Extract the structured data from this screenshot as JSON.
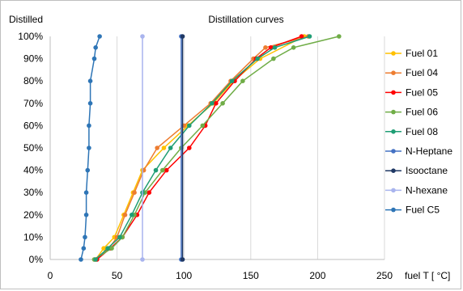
{
  "chart_data": {
    "type": "line",
    "title": "Distillation curves",
    "ylabel": "Distilled",
    "xlabel": "fuel T [ °C]",
    "xlim": [
      0,
      250
    ],
    "ylim": [
      0,
      100
    ],
    "x_ticks": [
      0,
      50,
      100,
      150,
      200,
      250
    ],
    "y_ticks": [
      0,
      10,
      20,
      30,
      40,
      50,
      60,
      70,
      80,
      90,
      100
    ],
    "y_tick_suffix": "%",
    "grid": "vertical",
    "legend_position": "right",
    "series": [
      {
        "name": "Fuel 01",
        "color": "#ffc000",
        "points": [
          [
            34,
            0
          ],
          [
            40,
            5
          ],
          [
            48,
            10
          ],
          [
            55,
            20
          ],
          [
            62,
            30
          ],
          [
            69,
            40
          ],
          [
            85,
            50
          ],
          [
            103,
            60
          ],
          [
            122,
            70
          ],
          [
            137,
            80
          ],
          [
            157,
            90
          ],
          [
            190,
            100
          ]
        ]
      },
      {
        "name": "Fuel 04",
        "color": "#ed7d31",
        "points": [
          [
            33,
            0
          ],
          [
            44,
            5
          ],
          [
            50,
            10
          ],
          [
            56,
            20
          ],
          [
            63,
            30
          ],
          [
            70,
            40
          ],
          [
            80,
            50
          ],
          [
            100,
            60
          ],
          [
            120,
            70
          ],
          [
            135,
            80
          ],
          [
            152,
            90
          ],
          [
            161,
            95
          ],
          [
            193,
            100
          ]
        ]
      },
      {
        "name": "Fuel 05",
        "color": "#ff0000",
        "points": [
          [
            35,
            0
          ],
          [
            45,
            5
          ],
          [
            54,
            10
          ],
          [
            65,
            20
          ],
          [
            74,
            30
          ],
          [
            87,
            40
          ],
          [
            104,
            50
          ],
          [
            116,
            60
          ],
          [
            124,
            70
          ],
          [
            138,
            80
          ],
          [
            154,
            90
          ],
          [
            165,
            95
          ],
          [
            188,
            100
          ]
        ]
      },
      {
        "name": "Fuel 06",
        "color": "#70ad47",
        "points": [
          [
            33,
            0
          ],
          [
            46,
            5
          ],
          [
            54,
            10
          ],
          [
            63,
            20
          ],
          [
            71,
            30
          ],
          [
            84,
            40
          ],
          [
            98,
            50
          ],
          [
            114,
            60
          ],
          [
            129,
            70
          ],
          [
            144,
            80
          ],
          [
            167,
            90
          ],
          [
            182,
            95
          ],
          [
            216,
            100
          ]
        ]
      },
      {
        "name": "Fuel 08",
        "color": "#1f9e75",
        "points": [
          [
            34,
            0
          ],
          [
            43,
            5
          ],
          [
            52,
            10
          ],
          [
            61,
            20
          ],
          [
            69,
            30
          ],
          [
            79,
            40
          ],
          [
            90,
            50
          ],
          [
            104,
            60
          ],
          [
            121,
            70
          ],
          [
            136,
            80
          ],
          [
            155,
            90
          ],
          [
            168,
            95
          ],
          [
            194,
            100
          ]
        ]
      },
      {
        "name": "N-Heptane",
        "color": "#4472c4",
        "points": [
          [
            98,
            0
          ],
          [
            98,
            100
          ]
        ]
      },
      {
        "name": "Isooctane",
        "color": "#1f3864",
        "points": [
          [
            99,
            0
          ],
          [
            99,
            100
          ]
        ]
      },
      {
        "name": "N-hexane",
        "color": "#a9b4ee",
        "points": [
          [
            69,
            0
          ],
          [
            69,
            100
          ]
        ]
      },
      {
        "name": "Fuel C5",
        "color": "#2e75b6",
        "points": [
          [
            23,
            0
          ],
          [
            25,
            5
          ],
          [
            26,
            10
          ],
          [
            27,
            20
          ],
          [
            27,
            30
          ],
          [
            28,
            40
          ],
          [
            29,
            50
          ],
          [
            29,
            60
          ],
          [
            30,
            70
          ],
          [
            30,
            80
          ],
          [
            33,
            90
          ],
          [
            34,
            95
          ],
          [
            37,
            100
          ]
        ]
      }
    ]
  }
}
